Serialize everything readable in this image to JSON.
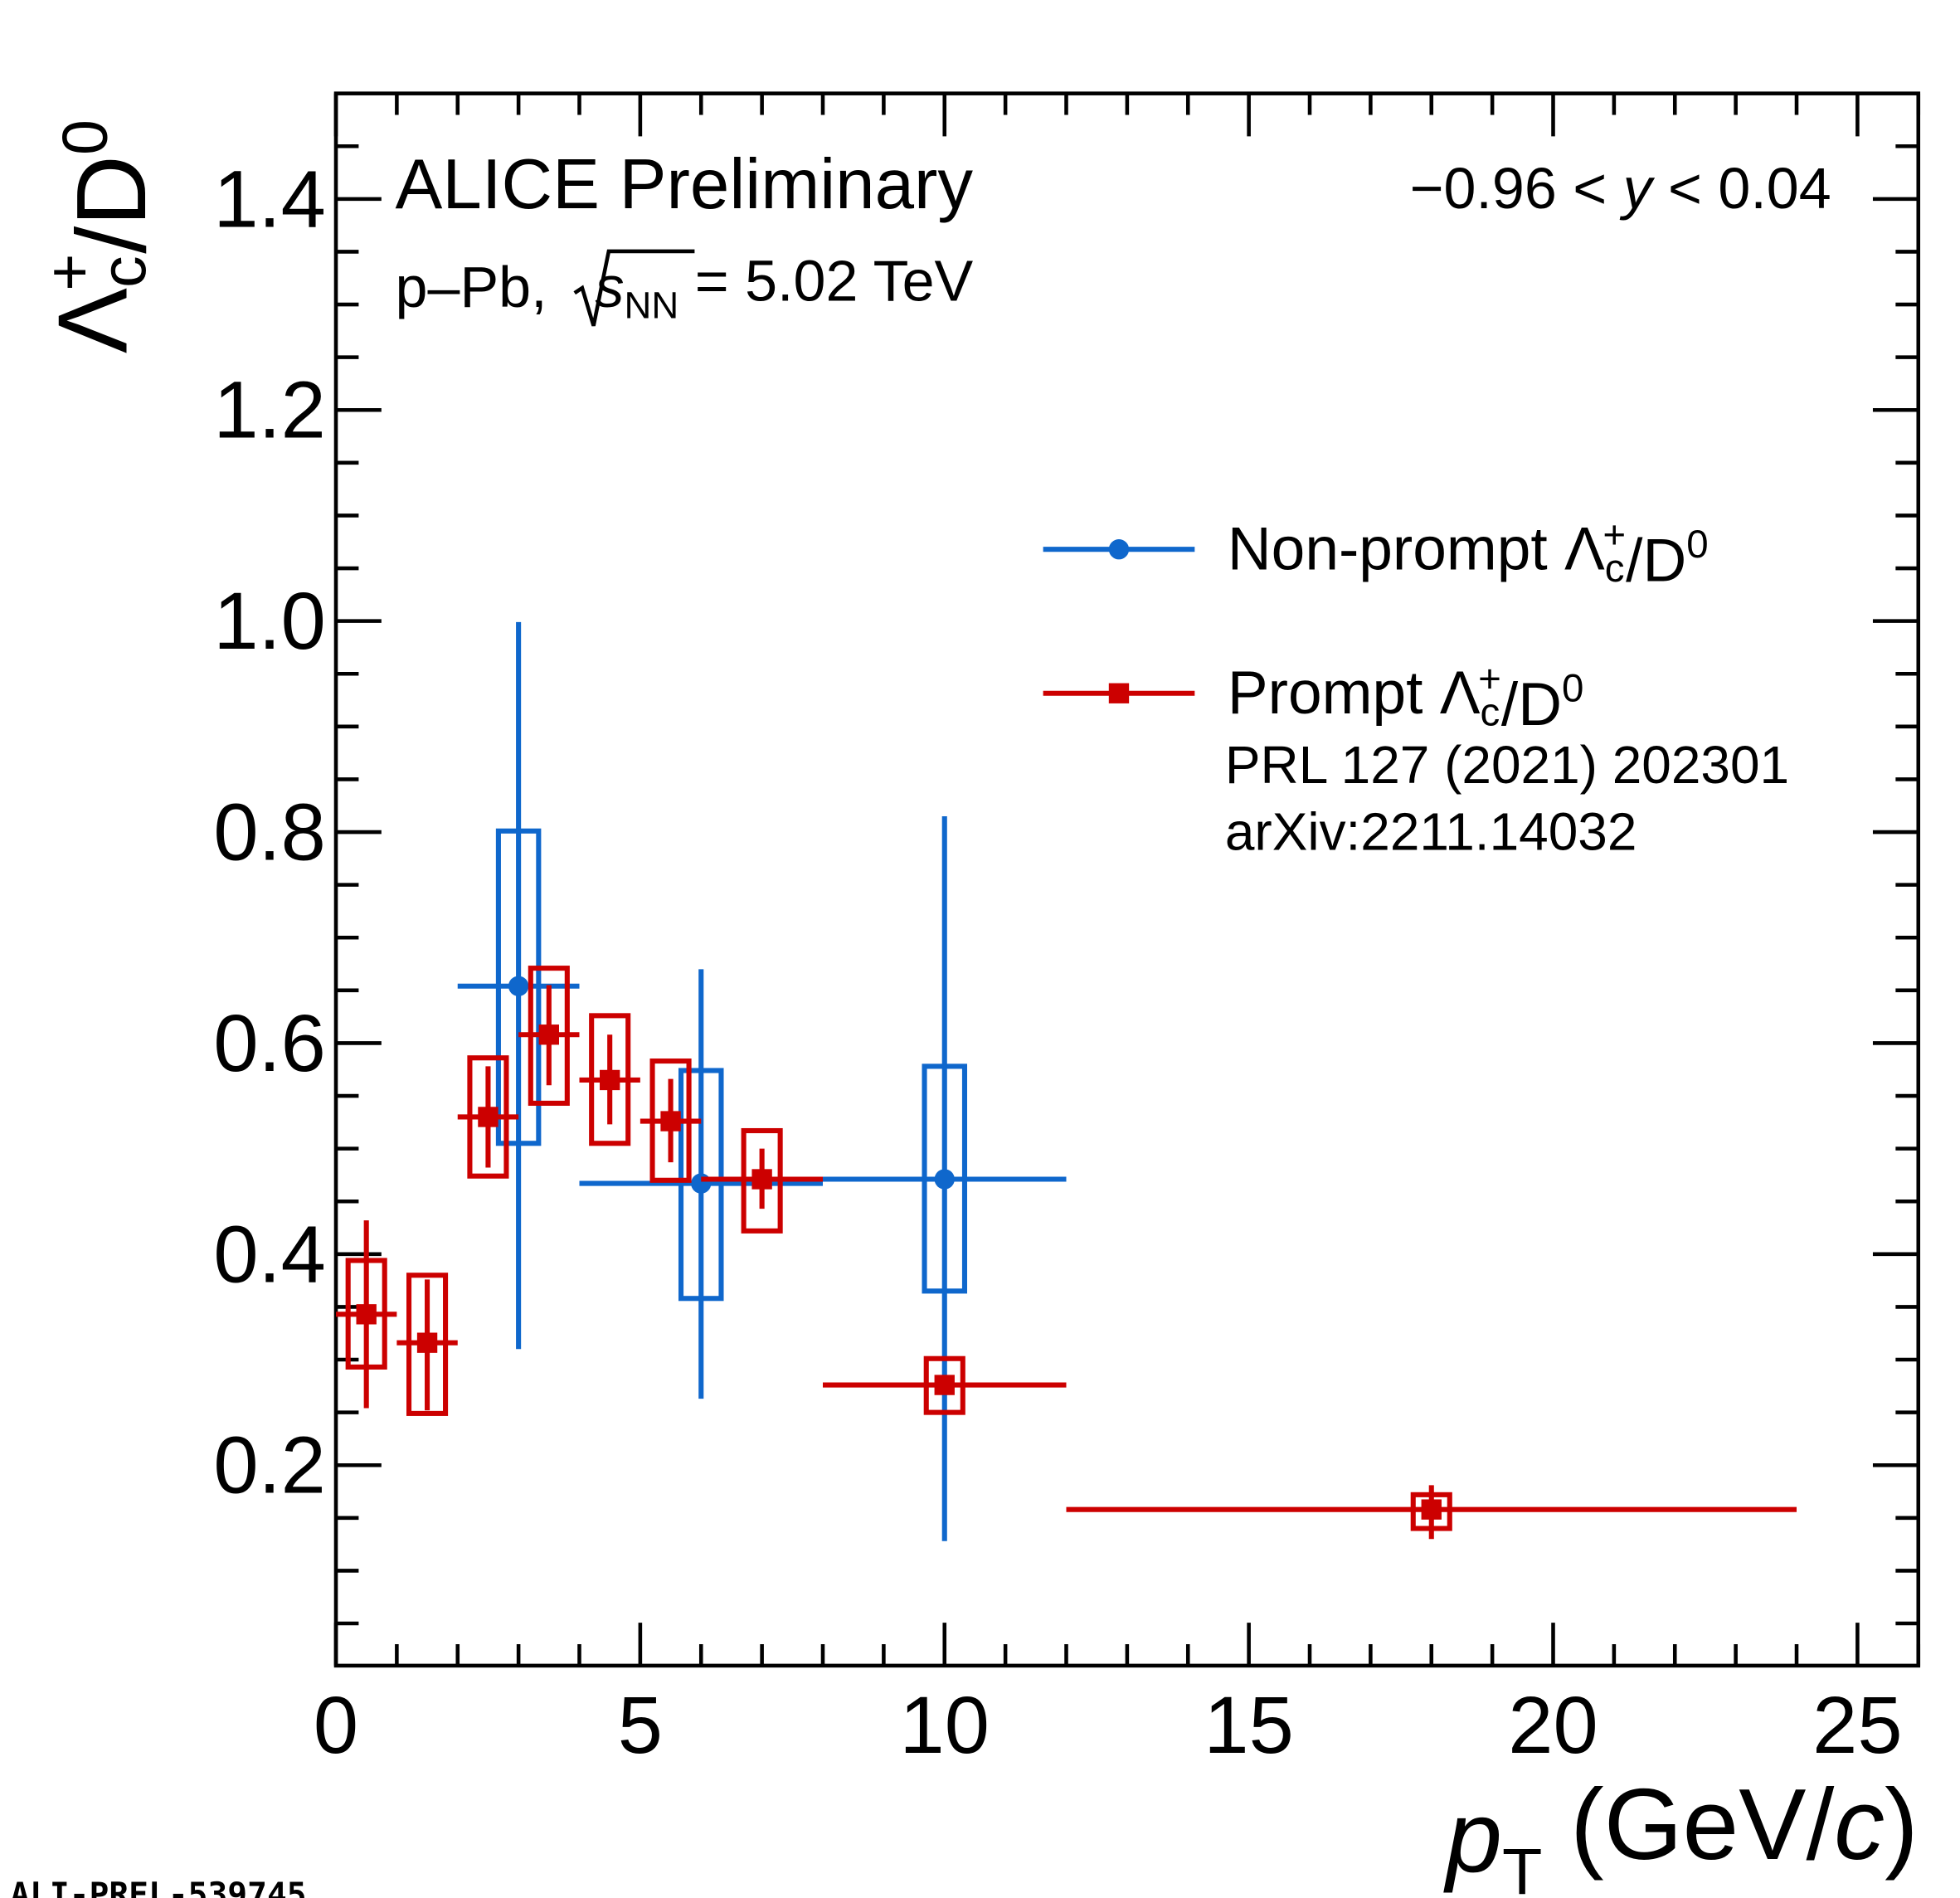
{
  "chart_data": {
    "type": "errorbar",
    "watermark": "ALI-PREL-539745",
    "experiment": "ALICE Preliminary",
    "system": {
      "pre": "p–Pb, ",
      "s": "s",
      "sub": "NN",
      "post": " = 5.02 TeV"
    },
    "rapidity": {
      "pre": "−0.96 < ",
      "var": "y",
      "post": " < 0.04"
    },
    "ylabel": {
      "main": "Λ",
      "sub": "c",
      "sup": "+",
      "rest": "/D",
      "rest_sup": "0"
    },
    "xlabel": {
      "var": "p",
      "sub": "T",
      "pre": " (GeV/",
      "unit": "c",
      "post": ")"
    },
    "references": [
      "PRL 127 (2021) 202301",
      "arXiv:2211.14032"
    ],
    "xlim": [
      0,
      26
    ],
    "ylim": [
      0.01,
      1.5
    ],
    "xticks": [
      0,
      5,
      10,
      15,
      20,
      25
    ],
    "xminorticks": [
      1,
      2,
      3,
      4,
      6,
      7,
      8,
      9,
      11,
      12,
      13,
      14,
      16,
      17,
      18,
      19,
      21,
      22,
      23,
      24,
      26
    ],
    "yticks": [
      0.2,
      0.4,
      0.6,
      0.8,
      {
        "value": 1,
        "label": "1.0"
      },
      1.2,
      1.4
    ],
    "yminorticks": [
      0.05,
      0.1,
      0.15,
      0.25,
      0.3,
      0.35,
      0.45,
      0.5,
      0.55,
      0.65,
      0.7,
      0.75,
      0.85,
      0.9,
      0.95,
      1.05,
      1.1,
      1.15,
      1.25,
      1.3,
      1.35,
      1.45
    ],
    "series": [
      {
        "label": {
          "main": "Non-prompt Λ",
          "sub": "c",
          "sup": "+",
          "rest": "/D",
          "rest_sup": "0"
        },
        "color": "#0f67cc",
        "marker": "circle",
        "x": [
          3,
          6,
          10
        ],
        "x_low": [
          2,
          4,
          8
        ],
        "x_high": [
          4,
          8,
          12
        ],
        "values": [
          0.654,
          0.467,
          0.471
        ],
        "stat_low": [
          0.31,
          0.263,
          0.128
        ],
        "stat_high": [
          0.999,
          0.67,
          0.815
        ],
        "syst_low": [
          0.505,
          0.358,
          0.365
        ],
        "syst_high": [
          0.801,
          0.574,
          0.578
        ]
      },
      {
        "label": {
          "main": "Prompt Λ",
          "sub": "c",
          "sup": "+",
          "rest": "/D",
          "rest_sup": "0"
        },
        "color": "#cc0000",
        "marker": "square",
        "x": [
          0.5,
          1.5,
          2.5,
          3.5,
          4.5,
          5.5,
          7,
          10,
          18
        ],
        "x_low": [
          0,
          1,
          2,
          3,
          4,
          5,
          6,
          8,
          12
        ],
        "x_high": [
          1,
          2,
          3,
          4,
          5,
          6,
          8,
          12,
          24
        ],
        "values": [
          0.343,
          0.316,
          0.53,
          0.608,
          0.565,
          0.526,
          0.471,
          0.276,
          0.158
        ],
        "stat_low": [
          0.254,
          0.252,
          0.482,
          0.56,
          0.523,
          0.487,
          0.443,
          0.268,
          0.13
        ],
        "stat_high": [
          0.432,
          0.376,
          0.578,
          0.655,
          0.608,
          0.566,
          0.5,
          0.285,
          0.181
        ],
        "syst_low": [
          0.293,
          0.249,
          0.474,
          0.543,
          0.505,
          0.47,
          0.422,
          0.25,
          0.14
        ],
        "syst_high": [
          0.394,
          0.38,
          0.586,
          0.671,
          0.626,
          0.583,
          0.517,
          0.301,
          0.172
        ]
      }
    ]
  }
}
